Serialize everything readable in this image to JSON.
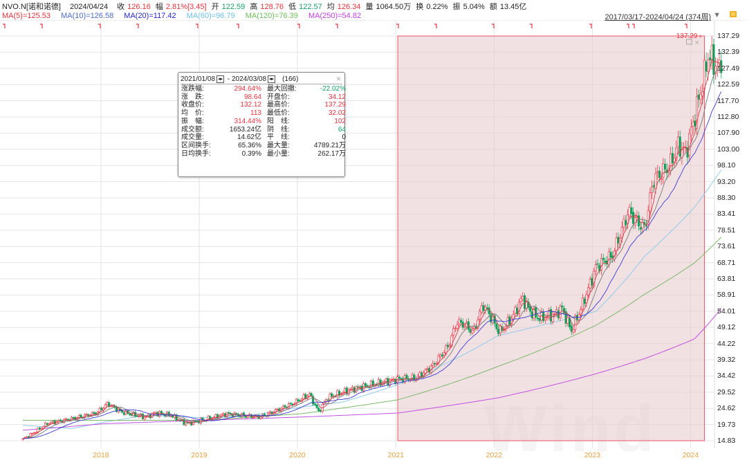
{
  "header": {
    "symbol": "NVO.N[诺和诺德]",
    "date": "2024/04/24",
    "close_label": "收",
    "close": "126.16",
    "chg_label": "幅",
    "chg": "2.81%[3.45]",
    "open_label": "开",
    "open": "122.59",
    "high_label": "高",
    "high": "128.76",
    "low_label": "低",
    "low": "122.57",
    "avg_label": "均",
    "avg": "126.34",
    "vol_label": "量",
    "vol": "1064.50万",
    "turn_label": "换",
    "turn": "0.22%",
    "amp_label": "振",
    "amp": "5.04%",
    "amt_label": "额",
    "amt": "13.45亿"
  },
  "ma_legend": [
    {
      "text": "MA(5)=125.53",
      "color": "#e8323c"
    },
    {
      "text": "MA(10)=126.58",
      "color": "#4a6ccc"
    },
    {
      "text": "MA(20)=117.42",
      "color": "#2626d0"
    },
    {
      "text": "MA(60)=96.79",
      "color": "#6cc0ea"
    },
    {
      "text": "MA(120)=76.39",
      "color": "#6cbf5a"
    },
    {
      "text": "MA(250)=54.82",
      "color": "#c040e0"
    }
  ],
  "range_label": "2017/03/17-2024/04/24 (374周)",
  "icons": {
    "dropdown": "triangle-down-icon",
    "lock": "lock-icon",
    "close": "close-icon",
    "maximize": "square-icon"
  },
  "watermark": "Wind",
  "popup": {
    "start": "2021/01/08",
    "end": "2024/03/08",
    "count": "(166)",
    "rows": [
      [
        "涨跌幅:",
        "294.64%",
        "red",
        "最大回撤:",
        "-22.02%",
        "grn"
      ],
      [
        "涨　跌:",
        "98.64",
        "red",
        "开盘价:",
        "34.12",
        "red"
      ],
      [
        "收盘价:",
        "132.12",
        "red",
        "最高价:",
        "137.29",
        "red"
      ],
      [
        "均　价:",
        "113",
        "red",
        "最低价:",
        "32.02",
        "red"
      ],
      [
        "振　幅:",
        "314.44%",
        "red",
        "阳　线:",
        "102",
        "red"
      ],
      [
        "成交额:",
        "1653.24亿",
        "",
        "阴　线:",
        "64",
        "grn"
      ],
      [
        "成交量:",
        "14.62亿",
        "",
        "平　线:",
        "0",
        ""
      ],
      [
        "区间换手:",
        "65.36%",
        "",
        "最大量:",
        "4789.21万",
        ""
      ],
      [
        "日均换手:",
        "0.39%",
        "",
        "最小量:",
        "262.17万",
        ""
      ]
    ]
  },
  "highlight": {
    "start": "2021-01-08",
    "end": "2024-03-08",
    "max_label": "137.29",
    "fill": "#e8c8cc",
    "border": "#f05060"
  },
  "chart_data": {
    "type": "candlestick",
    "period": "weekly",
    "start": "2017-03-17",
    "end": "2024-04-24",
    "bars": 374,
    "up_color": "#ee3344",
    "down_color": "#13a05a",
    "y_ticks": [
      "137.29",
      "132.39",
      "127.49",
      "122.59",
      "117.70",
      "112.80",
      "107.90",
      "103.00",
      "98.10",
      "93.20",
      "88.30",
      "83.41",
      "78.51",
      "73.61",
      "68.71",
      "63.81",
      "58.91",
      "54.01",
      "49.12",
      "44.22",
      "39.32",
      "34.42",
      "29.52",
      "24.62",
      "19.73",
      "14.83"
    ],
    "ylim": [
      14.83,
      137.29
    ],
    "x_ticks": [
      "2018",
      "2019",
      "2020",
      "2021",
      "2022",
      "2023",
      "2024"
    ],
    "close_anchors": [
      [
        "2017-03-17",
        15.3
      ],
      [
        "2017-06-15",
        20.0
      ],
      [
        "2017-09-15",
        21.5
      ],
      [
        "2017-12-15",
        23.2
      ],
      [
        "2018-01-26",
        26.1
      ],
      [
        "2018-03-15",
        23.6
      ],
      [
        "2018-06-15",
        21.9
      ],
      [
        "2018-07-20",
        23.2
      ],
      [
        "2018-09-15",
        22.6
      ],
      [
        "2018-11-15",
        20.0
      ],
      [
        "2019-01-15",
        21.1
      ],
      [
        "2019-04-15",
        23.0
      ],
      [
        "2019-06-15",
        22.4
      ],
      [
        "2019-08-15",
        22.0
      ],
      [
        "2019-10-15",
        24.0
      ],
      [
        "2019-12-15",
        26.1
      ],
      [
        "2020-02-15",
        28.9
      ],
      [
        "2020-03-20",
        23.6
      ],
      [
        "2020-04-20",
        27.8
      ],
      [
        "2020-07-15",
        30.3
      ],
      [
        "2020-10-15",
        32.0
      ],
      [
        "2021-01-08",
        33.5
      ],
      [
        "2021-03-15",
        33.7
      ],
      [
        "2021-05-15",
        37.3
      ],
      [
        "2021-06-15",
        40.4
      ],
      [
        "2021-07-15",
        43.5
      ],
      [
        "2021-08-15",
        50.8
      ],
      [
        "2021-09-15",
        49.8
      ],
      [
        "2021-10-15",
        47.7
      ],
      [
        "2021-11-20",
        56.1
      ],
      [
        "2021-12-15",
        53.0
      ],
      [
        "2022-01-20",
        47.7
      ],
      [
        "2022-02-15",
        49.8
      ],
      [
        "2022-03-15",
        53.0
      ],
      [
        "2022-04-15",
        58.2
      ],
      [
        "2022-05-15",
        54.0
      ],
      [
        "2022-06-15",
        51.9
      ],
      [
        "2022-08-15",
        53.0
      ],
      [
        "2022-09-10",
        55.0
      ],
      [
        "2022-10-15",
        48.1
      ],
      [
        "2022-11-15",
        54.0
      ],
      [
        "2022-12-15",
        60.3
      ],
      [
        "2023-01-15",
        67.6
      ],
      [
        "2023-03-15",
        70.7
      ],
      [
        "2023-05-15",
        84.3
      ],
      [
        "2023-06-15",
        81.2
      ],
      [
        "2023-07-15",
        79.1
      ],
      [
        "2023-08-15",
        93.8
      ],
      [
        "2023-09-15",
        95.9
      ],
      [
        "2023-10-15",
        98.0
      ],
      [
        "2023-11-15",
        104.2
      ],
      [
        "2023-12-15",
        102.1
      ],
      [
        "2024-01-15",
        112.6
      ],
      [
        "2024-02-15",
        123.1
      ],
      [
        "2024-03-08",
        131.8
      ],
      [
        "2024-03-25",
        129.3
      ],
      [
        "2024-04-24",
        126.16
      ]
    ],
    "ma_long": {
      "MA(60)": [
        [
          "2017-03-17",
          19.5
        ],
        [
          "2017-09-15",
          18.5
        ],
        [
          "2018-01-15",
          20.5
        ],
        [
          "2018-06-15",
          22.5
        ],
        [
          "2019-01-15",
          21.8
        ],
        [
          "2019-06-15",
          22.2
        ],
        [
          "2020-01-15",
          25.0
        ],
        [
          "2020-06-15",
          26.5
        ],
        [
          "2021-01-08",
          31.8
        ],
        [
          "2022-01-15",
          46.6
        ],
        [
          "2023-01-15",
          54.0
        ],
        [
          "2023-07-15",
          70.7
        ],
        [
          "2024-01-15",
          85.4
        ],
        [
          "2024-04-24",
          96.79
        ]
      ],
      "MA(120)": [
        [
          "2017-03-17",
          21.0
        ],
        [
          "2019-01-15",
          21.0
        ],
        [
          "2020-01-15",
          23.0
        ],
        [
          "2020-06-15",
          24.7
        ],
        [
          "2021-01-08",
          27.2
        ],
        [
          "2022-01-15",
          37.3
        ],
        [
          "2023-01-15",
          49.8
        ],
        [
          "2023-07-15",
          59.2
        ],
        [
          "2024-01-15",
          68.6
        ],
        [
          "2024-04-24",
          76.39
        ]
      ],
      "MA(250)": [
        [
          "2017-03-17",
          18.0
        ],
        [
          "2018-01-15",
          20.0
        ],
        [
          "2019-01-15",
          21.0
        ],
        [
          "2020-01-15",
          22.0
        ],
        [
          "2021-01-08",
          23.2
        ],
        [
          "2022-01-15",
          27.8
        ],
        [
          "2023-01-15",
          35.1
        ],
        [
          "2023-07-15",
          39.7
        ],
        [
          "2024-01-15",
          45.6
        ],
        [
          "2024-04-24",
          54.82
        ]
      ]
    }
  }
}
